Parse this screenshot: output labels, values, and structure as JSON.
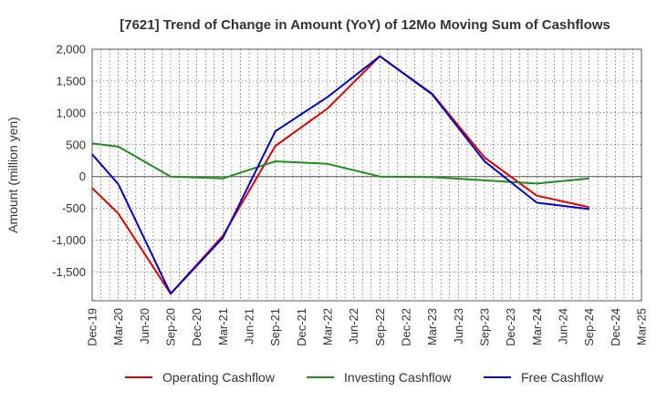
{
  "chart_data": {
    "type": "line",
    "title": "[7621]  Trend of Change in Amount (YoY) of 12Mo Moving Sum of Cashflows",
    "xlabel": "",
    "ylabel": "Amount (million yen)",
    "ylim": [
      -1950,
      2000
    ],
    "yticks": [
      2000,
      1500,
      1000,
      500,
      0,
      -500,
      -1000,
      -1500
    ],
    "ytick_labels": [
      "2,000",
      "1,500",
      "1,000",
      "500",
      "0",
      "-500",
      "-1,000",
      "-1,500"
    ],
    "categories": [
      "Dec-19",
      "Mar-20",
      "Jun-20",
      "Sep-20",
      "Dec-20",
      "Mar-21",
      "Jun-21",
      "Sep-21",
      "Dec-21",
      "Mar-22",
      "Jun-22",
      "Sep-22",
      "Dec-22",
      "Mar-23",
      "Jun-23",
      "Sep-23",
      "Dec-23",
      "Mar-24",
      "Jun-24",
      "Sep-24",
      "Dec-24",
      "Mar-25"
    ],
    "grid": true,
    "legend_position": "bottom",
    "series": [
      {
        "name": "Operating Cashflow",
        "color": "#e00000",
        "values": [
          -180,
          -580,
          null,
          -1840,
          null,
          -930,
          null,
          480,
          null,
          1070,
          null,
          1890,
          null,
          1300,
          null,
          300,
          null,
          -300,
          null,
          -480,
          null,
          null
        ]
      },
      {
        "name": "Investing Cashflow",
        "color": "#228b22",
        "values": [
          520,
          470,
          null,
          0,
          null,
          -30,
          null,
          240,
          null,
          200,
          null,
          0,
          null,
          -10,
          null,
          -60,
          null,
          -110,
          null,
          -30,
          null,
          null
        ]
      },
      {
        "name": "Free Cashflow",
        "color": "#0000cc",
        "values": [
          350,
          -120,
          null,
          -1840,
          null,
          -960,
          null,
          710,
          null,
          1250,
          null,
          1890,
          null,
          1290,
          null,
          240,
          null,
          -410,
          null,
          -510,
          null,
          null
        ]
      }
    ]
  }
}
